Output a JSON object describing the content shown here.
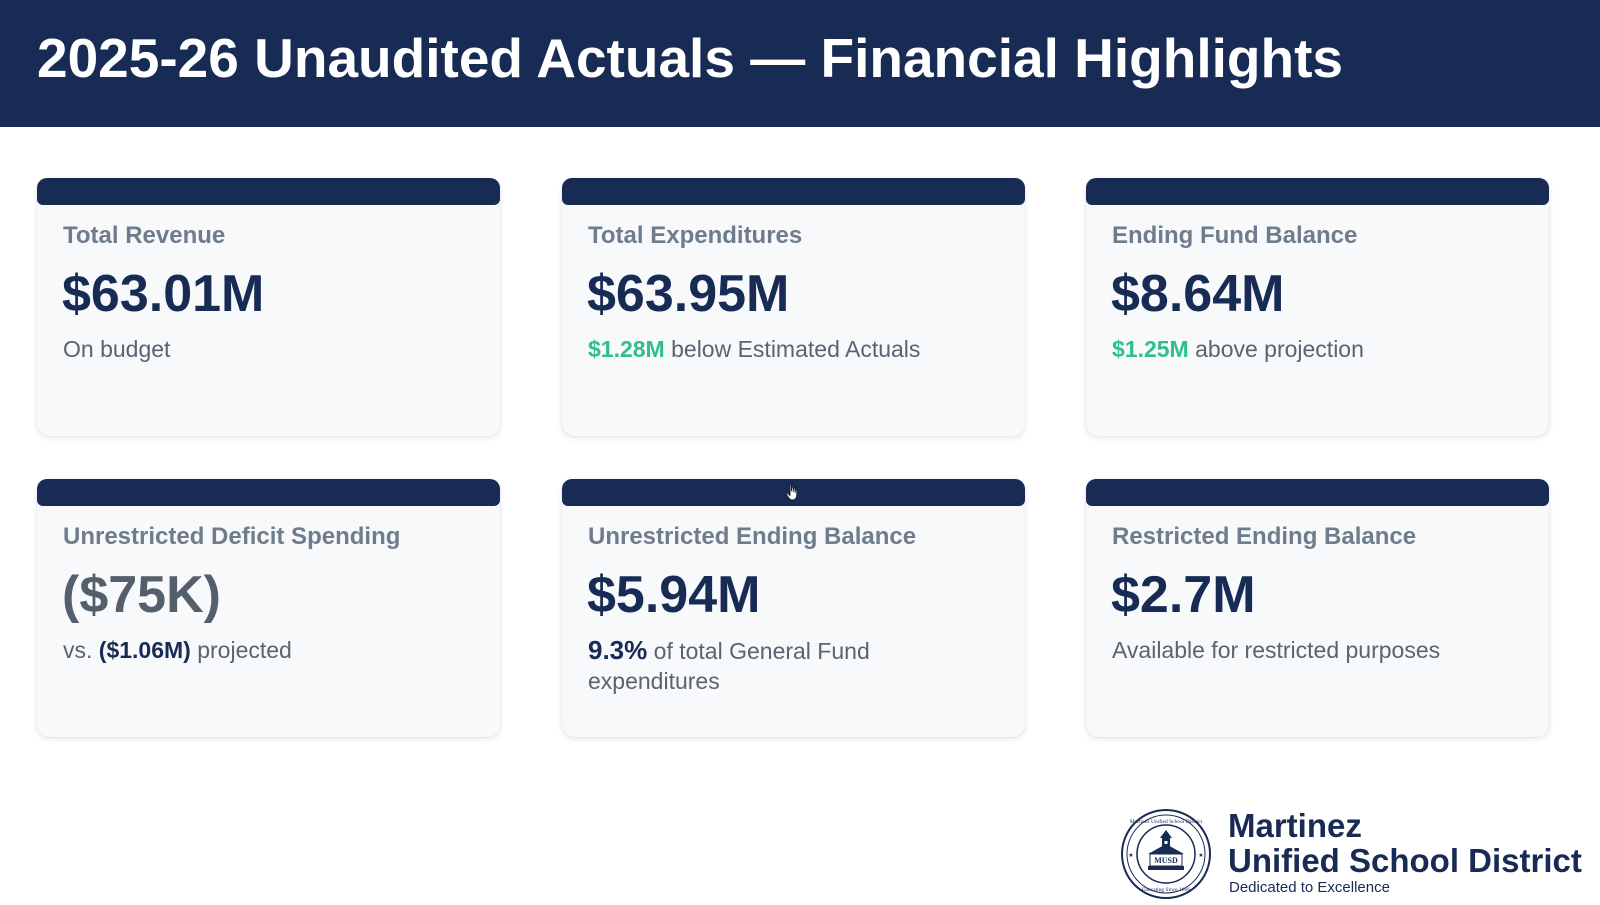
{
  "header": {
    "title": "2025-26 Unaudited Actuals — Financial Highlights"
  },
  "cards": [
    {
      "label": "Total Revenue",
      "value": "$63.01M",
      "note": "On budget"
    },
    {
      "label": "Total Expenditures",
      "value": "$63.95M",
      "note_highlight": "$1.28M",
      "note_rest": " below Estimated Actuals"
    },
    {
      "label": "Ending Fund Balance",
      "value": "$8.64M",
      "note_highlight": "$1.25M",
      "note_rest": " above projection"
    },
    {
      "label": "Unrestricted Deficit Spending",
      "value": "($75K)",
      "note_prefix": "vs. ",
      "note_highlight": "($1.06M)",
      "note_rest": " projected"
    },
    {
      "label": "Unrestricted Ending Balance",
      "value": "$5.94M",
      "note_highlight": "9.3%",
      "note_rest": " of total General Fund expenditures"
    },
    {
      "label": "Restricted Ending Balance",
      "value": "$2.7M",
      "note": "Available for restricted purposes"
    }
  ],
  "brand": {
    "name_line1": "Martinez",
    "name_line2": "Unified School District",
    "tagline": "Dedicated to Excellence",
    "seal_text": "MUSD",
    "seal_ring_top": "Martinez Unified School District",
    "seal_ring_bottom": "Educating Since 1866"
  },
  "colors": {
    "navy": "#172b55",
    "accent_green": "#2fbf8a",
    "card_bg": "#f7f9fb",
    "label_gray": "#6e7c8c"
  },
  "icons": {
    "cursor": "hand-cursor-icon",
    "logo": "district-seal-icon"
  }
}
